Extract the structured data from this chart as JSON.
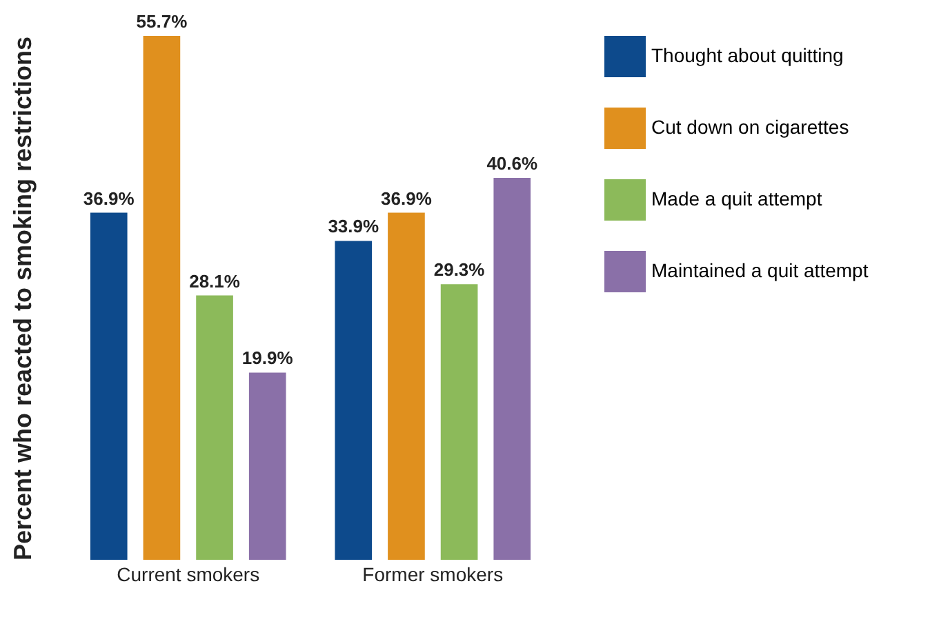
{
  "chart_data": {
    "type": "bar",
    "ylabel": "Percent who reacted to smoking restrictions",
    "categories": [
      "Current smokers",
      "Former smokers"
    ],
    "series": [
      {
        "name": "Thought about quitting",
        "color": "#0d4a8c",
        "values": [
          36.9,
          33.9
        ],
        "value_labels": [
          "36.9%",
          "33.9%"
        ]
      },
      {
        "name": "Cut down on cigarettes",
        "color": "#e0901e",
        "values": [
          55.7,
          36.9
        ],
        "value_labels": [
          "55.7%",
          "36.9%"
        ]
      },
      {
        "name": "Made a quit attempt",
        "color": "#8cba5a",
        "values": [
          28.1,
          29.3
        ],
        "value_labels": [
          "28.1%",
          "29.3%"
        ]
      },
      {
        "name": "Maintained a quit attempt",
        "color": "#8a70a8",
        "values": [
          19.9,
          40.6
        ],
        "value_labels": [
          "19.9%",
          "40.6%"
        ]
      }
    ],
    "legend": "right",
    "tick_labels": "x"
  }
}
